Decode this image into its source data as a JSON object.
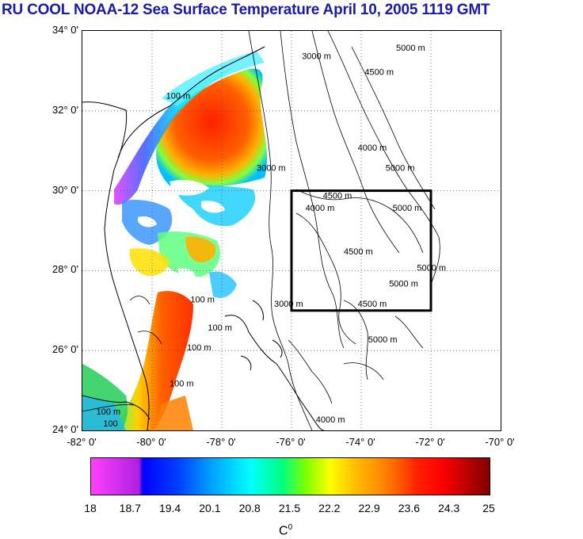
{
  "title": "RU COOL  NOAA-12 Sea Surface Temperature April 10, 2005 1119 GMT",
  "map": {
    "lat_labels": [
      "34° 0'",
      "32° 0'",
      "30° 0'",
      "28° 0'",
      "26° 0'",
      "24° 0'"
    ],
    "lon_labels": [
      "-82° 0'",
      "-80° 0'",
      "-78° 0'",
      "-76° 0'",
      "-74° 0'",
      "-72° 0'",
      "-70° 0'"
    ],
    "lat_range": [
      24,
      34
    ],
    "lon_range": [
      -82,
      -70
    ],
    "grid": true,
    "box": {
      "lon": [
        -76,
        -72
      ],
      "lat": [
        27,
        30
      ]
    },
    "contour_labels": [
      {
        "text": "3000 m",
        "lon": -75.7,
        "lat": 33.3
      },
      {
        "text": "5000 m",
        "lon": -73.0,
        "lat": 33.5
      },
      {
        "text": "4500 m",
        "lon": -73.9,
        "lat": 32.9
      },
      {
        "text": "100 m",
        "lon": -79.6,
        "lat": 32.3
      },
      {
        "text": "4000 m",
        "lon": -74.1,
        "lat": 31.0
      },
      {
        "text": "5000 m",
        "lon": -73.3,
        "lat": 30.5
      },
      {
        "text": "3000 m",
        "lon": -77.0,
        "lat": 30.5
      },
      {
        "text": "4500 m",
        "lon": -75.1,
        "lat": 29.8
      },
      {
        "text": "4000 m",
        "lon": -75.6,
        "lat": 29.5
      },
      {
        "text": "5000 m",
        "lon": -73.1,
        "lat": 29.5
      },
      {
        "text": "4500 m",
        "lon": -74.5,
        "lat": 28.4
      },
      {
        "text": "5000 m",
        "lon": -72.4,
        "lat": 28.0
      },
      {
        "text": "5000 m",
        "lon": -73.2,
        "lat": 27.6
      },
      {
        "text": "4500 m",
        "lon": -74.1,
        "lat": 27.1
      },
      {
        "text": "100 m",
        "lon": -78.9,
        "lat": 27.2
      },
      {
        "text": "100 m",
        "lon": -78.4,
        "lat": 26.5
      },
      {
        "text": "100 m",
        "lon": -79.0,
        "lat": 26.0
      },
      {
        "text": "100 m",
        "lon": -79.5,
        "lat": 25.1
      },
      {
        "text": "100 m",
        "lon": -81.6,
        "lat": 24.4
      },
      {
        "text": "5000 m",
        "lon": -73.8,
        "lat": 26.2
      },
      {
        "text": "3000 m",
        "lon": -76.5,
        "lat": 27.1
      },
      {
        "text": "4000 m",
        "lon": -75.3,
        "lat": 24.2
      },
      {
        "text": "100",
        "lon": -81.4,
        "lat": 24.1
      }
    ]
  },
  "colorbar": {
    "ticks": [
      "18",
      "18.7",
      "19.4",
      "20.1",
      "20.8",
      "21.5",
      "22.2",
      "22.9",
      "23.6",
      "24.3",
      "25"
    ],
    "min": 18,
    "max": 25,
    "unit_base": "C",
    "unit_sup": "0"
  }
}
